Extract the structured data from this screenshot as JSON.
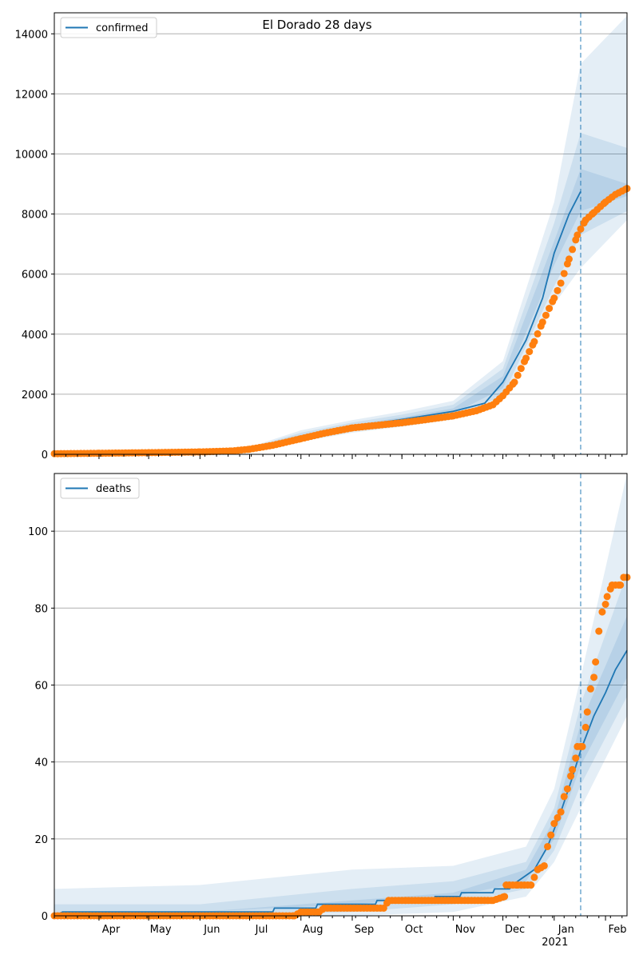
{
  "figure_title": "El Dorado 28 days",
  "colors": {
    "model_line": "#1f77b4",
    "band": "#1f77b4",
    "observed": "#ff7f0e",
    "vline": "#1f77b4",
    "grid": "#b0b0b0"
  },
  "x_axis": {
    "month_labels": [
      "Apr",
      "May",
      "Jun",
      "Jul",
      "Aug",
      "Sep",
      "Oct",
      "Nov",
      "Dec",
      "Jan",
      "Feb"
    ],
    "year_label": "2021"
  },
  "chart_data": [
    {
      "type": "line",
      "legend_label": "confirmed",
      "legend_position": "top-left",
      "grid": "horizontal",
      "x_range": [
        "2020-03-05",
        "2021-02-14"
      ],
      "ylim": [
        0,
        14700
      ],
      "y_ticks": [
        0,
        2000,
        4000,
        6000,
        8000,
        10000,
        12000,
        14000
      ],
      "forecast_start": "2021-01-17",
      "model_line": [
        [
          "2020-03-05",
          30
        ],
        [
          "2020-06-01",
          80
        ],
        [
          "2020-07-01",
          180
        ],
        [
          "2020-08-01",
          600
        ],
        [
          "2020-09-01",
          920
        ],
        [
          "2020-10-01",
          1160
        ],
        [
          "2020-11-01",
          1430
        ],
        [
          "2020-11-20",
          1700
        ],
        [
          "2020-12-01",
          2400
        ],
        [
          "2020-12-15",
          3800
        ],
        [
          "2020-12-25",
          5200
        ],
        [
          "2021-01-01",
          6700
        ],
        [
          "2021-01-10",
          8000
        ],
        [
          "2021-01-17",
          8750
        ]
      ],
      "bands": [
        {
          "level": "inner",
          "upper": [
            [
              "2020-07-01",
              200
            ],
            [
              "2020-08-01",
              650
            ],
            [
              "2020-09-01",
              980
            ],
            [
              "2020-10-01",
              1230
            ],
            [
              "2020-11-01",
              1530
            ],
            [
              "2020-12-01",
              2600
            ],
            [
              "2021-01-01",
              7100
            ],
            [
              "2021-01-17",
              9500
            ],
            [
              "2021-02-14",
              9000
            ]
          ],
          "lower": [
            [
              "2020-07-01",
              160
            ],
            [
              "2020-08-01",
              550
            ],
            [
              "2020-09-01",
              860
            ],
            [
              "2020-10-01",
              1100
            ],
            [
              "2020-11-01",
              1350
            ],
            [
              "2020-12-01",
              2200
            ],
            [
              "2021-01-01",
              6300
            ],
            [
              "2021-01-17",
              8100
            ],
            [
              "2021-02-14",
              8600
            ]
          ]
        },
        {
          "level": "middle",
          "upper": [
            [
              "2020-07-01",
              220
            ],
            [
              "2020-08-01",
              720
            ],
            [
              "2020-09-01",
              1060
            ],
            [
              "2020-10-01",
              1320
            ],
            [
              "2020-11-01",
              1650
            ],
            [
              "2020-12-01",
              2850
            ],
            [
              "2021-01-01",
              7700
            ],
            [
              "2021-01-17",
              10700
            ],
            [
              "2021-02-14",
              10200
            ]
          ],
          "lower": [
            [
              "2020-07-01",
              140
            ],
            [
              "2020-08-01",
              480
            ],
            [
              "2020-09-01",
              780
            ],
            [
              "2020-10-01",
              1000
            ],
            [
              "2020-11-01",
              1250
            ],
            [
              "2020-12-01",
              1950
            ],
            [
              "2021-01-01",
              5600
            ],
            [
              "2021-01-17",
              7300
            ],
            [
              "2021-02-14",
              8100
            ]
          ]
        },
        {
          "level": "outer",
          "upper": [
            [
              "2020-07-01",
              240
            ],
            [
              "2020-08-01",
              800
            ],
            [
              "2020-09-01",
              1140
            ],
            [
              "2020-10-01",
              1420
            ],
            [
              "2020-11-01",
              1780
            ],
            [
              "2020-12-01",
              3100
            ],
            [
              "2021-01-01",
              8400
            ],
            [
              "2021-01-17",
              13000
            ],
            [
              "2021-02-14",
              14600
            ]
          ],
          "lower": [
            [
              "2020-07-01",
              120
            ],
            [
              "2020-08-01",
              420
            ],
            [
              "2020-09-01",
              720
            ],
            [
              "2020-10-01",
              920
            ],
            [
              "2020-11-01",
              1160
            ],
            [
              "2020-12-01",
              1800
            ],
            [
              "2021-01-01",
              5000
            ],
            [
              "2021-01-17",
              6200
            ],
            [
              "2021-02-14",
              7800
            ]
          ]
        }
      ],
      "observed": [
        [
          "2020-03-05",
          20
        ],
        [
          "2020-04-01",
          35
        ],
        [
          "2020-05-01",
          55
        ],
        [
          "2020-06-01",
          80
        ],
        [
          "2020-06-20",
          110
        ],
        [
          "2020-07-01",
          170
        ],
        [
          "2020-07-15",
          300
        ],
        [
          "2020-08-01",
          520
        ],
        [
          "2020-08-15",
          700
        ],
        [
          "2020-09-01",
          880
        ],
        [
          "2020-09-15",
          960
        ],
        [
          "2020-10-01",
          1050
        ],
        [
          "2020-10-15",
          1150
        ],
        [
          "2020-11-01",
          1280
        ],
        [
          "2020-11-15",
          1450
        ],
        [
          "2020-11-25",
          1650
        ],
        [
          "2020-12-01",
          1950
        ],
        [
          "2020-12-08",
          2400
        ],
        [
          "2020-12-15",
          3200
        ],
        [
          "2020-12-20",
          3750
        ],
        [
          "2020-12-25",
          4400
        ],
        [
          "2021-01-01",
          5200
        ],
        [
          "2021-01-05",
          5700
        ],
        [
          "2021-01-10",
          6500
        ],
        [
          "2021-01-15",
          7300
        ],
        [
          "2021-01-20",
          7800
        ],
        [
          "2021-01-25",
          8050
        ],
        [
          "2021-02-01",
          8400
        ],
        [
          "2021-02-07",
          8650
        ],
        [
          "2021-02-14",
          8850
        ]
      ]
    },
    {
      "type": "line",
      "legend_label": "deaths",
      "legend_position": "top-left",
      "grid": "horizontal",
      "x_range": [
        "2020-03-05",
        "2021-02-14"
      ],
      "ylim": [
        0,
        115
      ],
      "y_ticks": [
        0,
        20,
        40,
        60,
        80,
        100
      ],
      "forecast_start": "2021-01-17",
      "model_line": [
        [
          "2020-03-05",
          0
        ],
        [
          "2020-03-10",
          1
        ],
        [
          "2020-07-15",
          1
        ],
        [
          "2020-07-16",
          2
        ],
        [
          "2020-08-10",
          2
        ],
        [
          "2020-08-11",
          3
        ],
        [
          "2020-09-15",
          3
        ],
        [
          "2020-09-16",
          4
        ],
        [
          "2020-10-20",
          4
        ],
        [
          "2020-10-21",
          5
        ],
        [
          "2020-11-05",
          5
        ],
        [
          "2020-11-06",
          6
        ],
        [
          "2020-11-25",
          6
        ],
        [
          "2020-11-26",
          7
        ],
        [
          "2020-12-05",
          7
        ],
        [
          "2020-12-10",
          9
        ],
        [
          "2020-12-20",
          12
        ],
        [
          "2020-12-28",
          18
        ],
        [
          "2021-01-05",
          27
        ],
        [
          "2021-01-12",
          36
        ],
        [
          "2021-01-17",
          43
        ],
        [
          "2021-01-25",
          52
        ],
        [
          "2021-02-01",
          58
        ],
        [
          "2021-02-07",
          64
        ],
        [
          "2021-02-14",
          69
        ]
      ],
      "bands": [
        {
          "level": "inner",
          "upper": [
            [
              "2020-03-05",
              1
            ],
            [
              "2020-06-01",
              1
            ],
            [
              "2020-09-01",
              4
            ],
            [
              "2020-11-01",
              6
            ],
            [
              "2020-12-15",
              12
            ],
            [
              "2021-01-01",
              25
            ],
            [
              "2021-01-17",
              50
            ],
            [
              "2021-02-14",
              78
            ]
          ],
          "lower": [
            [
              "2020-03-05",
              0
            ],
            [
              "2020-06-01",
              1
            ],
            [
              "2020-09-01",
              3
            ],
            [
              "2020-11-01",
              5
            ],
            [
              "2020-12-15",
              9
            ],
            [
              "2021-01-01",
              20
            ],
            [
              "2021-01-17",
              39
            ],
            [
              "2021-02-14",
              62
            ]
          ]
        },
        {
          "level": "middle",
          "upper": [
            [
              "2020-03-05",
              3
            ],
            [
              "2020-06-01",
              3
            ],
            [
              "2020-09-01",
              7
            ],
            [
              "2020-11-01",
              9
            ],
            [
              "2020-12-15",
              14
            ],
            [
              "2021-01-01",
              28
            ],
            [
              "2021-01-17",
              55
            ],
            [
              "2021-02-14",
              89
            ]
          ],
          "lower": [
            [
              "2020-03-05",
              0
            ],
            [
              "2020-06-01",
              0
            ],
            [
              "2020-09-01",
              1
            ],
            [
              "2020-11-01",
              3
            ],
            [
              "2020-12-15",
              7
            ],
            [
              "2021-01-01",
              17
            ],
            [
              "2021-01-17",
              34
            ],
            [
              "2021-02-14",
              57
            ]
          ]
        },
        {
          "level": "outer",
          "upper": [
            [
              "2020-03-05",
              7
            ],
            [
              "2020-06-01",
              8
            ],
            [
              "2020-09-01",
              12
            ],
            [
              "2020-11-01",
              13
            ],
            [
              "2020-12-15",
              18
            ],
            [
              "2021-01-01",
              33
            ],
            [
              "2021-01-17",
              62
            ],
            [
              "2021-02-14",
              115
            ]
          ],
          "lower": [
            [
              "2020-03-05",
              0
            ],
            [
              "2020-06-01",
              0
            ],
            [
              "2020-09-01",
              0
            ],
            [
              "2020-11-01",
              1
            ],
            [
              "2020-12-15",
              5
            ],
            [
              "2021-01-01",
              14
            ],
            [
              "2021-01-17",
              28
            ],
            [
              "2021-02-14",
              52
            ]
          ]
        }
      ],
      "observed": [
        [
          "2020-03-05",
          0
        ],
        [
          "2020-07-28",
          0
        ],
        [
          "2020-08-01",
          1
        ],
        [
          "2020-08-12",
          1
        ],
        [
          "2020-08-15",
          2
        ],
        [
          "2020-09-20",
          2
        ],
        [
          "2020-09-23",
          4
        ],
        [
          "2020-11-25",
          4
        ],
        [
          "2020-12-02",
          5
        ],
        [
          "2020-12-03",
          8
        ],
        [
          "2020-12-10",
          8
        ],
        [
          "2020-12-18",
          8
        ],
        [
          "2020-12-20",
          10
        ],
        [
          "2020-12-22",
          12
        ],
        [
          "2020-12-26",
          13
        ],
        [
          "2020-12-28",
          18
        ],
        [
          "2020-12-30",
          21
        ],
        [
          "2021-01-01",
          24
        ],
        [
          "2021-01-05",
          27
        ],
        [
          "2021-01-07",
          31
        ],
        [
          "2021-01-09",
          33
        ],
        [
          "2021-01-12",
          38
        ],
        [
          "2021-01-14",
          41
        ],
        [
          "2021-01-15",
          44
        ],
        [
          "2021-01-18",
          44
        ],
        [
          "2021-01-20",
          49
        ],
        [
          "2021-01-21",
          53
        ],
        [
          "2021-01-23",
          59
        ],
        [
          "2021-01-25",
          62
        ],
        [
          "2021-01-26",
          66
        ],
        [
          "2021-01-28",
          74
        ],
        [
          "2021-01-30",
          79
        ],
        [
          "2021-02-01",
          81
        ],
        [
          "2021-02-02",
          83
        ],
        [
          "2021-02-04",
          85
        ],
        [
          "2021-02-05",
          86
        ],
        [
          "2021-02-10",
          86
        ],
        [
          "2021-02-12",
          88
        ],
        [
          "2021-02-14",
          88
        ]
      ]
    }
  ]
}
